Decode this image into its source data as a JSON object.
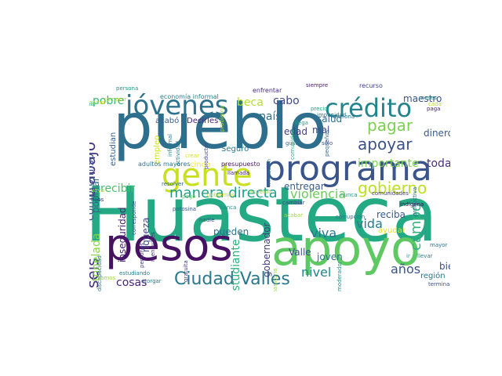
{
  "wordcloud": {
    "palette": [
      "#440154",
      "#3b528b",
      "#21918c",
      "#5ec962",
      "#fde725"
    ],
    "words": [
      {
        "text": "Huasteca",
        "c": "#23a983"
      },
      {
        "text": "pueblo",
        "c": "#2e6f8e"
      },
      {
        "text": "apoyo",
        "c": "#5ec962"
      },
      {
        "text": "pesos",
        "c": "#471164"
      },
      {
        "text": "programa",
        "c": "#3a548c"
      },
      {
        "text": "gente",
        "c": "#c8e020"
      },
      {
        "text": "jóvenes",
        "c": "#2c728e"
      },
      {
        "text": "crédito",
        "c": "#25838e"
      },
      {
        "text": "Ciudad Valles",
        "c": "#2a788e"
      },
      {
        "text": "gobierno",
        "c": "#bddf26"
      },
      {
        "text": "apoyar",
        "c": "#3b528b"
      },
      {
        "text": "pagar",
        "c": "#7ad151"
      },
      {
        "text": "bienestar",
        "c": "#3e4a89"
      },
      {
        "text": "trabajo",
        "c": "#443983"
      },
      {
        "text": "seis",
        "c": "#46337f"
      },
      {
        "text": "haciendo",
        "c": "#375a8c"
      },
      {
        "text": "manera directa",
        "c": "#1f9e89"
      },
      {
        "text": "violencia",
        "c": "#6ccd5a"
      },
      {
        "text": "vida",
        "c": "#287c8e"
      },
      {
        "text": "viva",
        "c": "#2a788e"
      },
      {
        "text": "campo",
        "c": "#2fb47c"
      },
      {
        "text": "nivel",
        "c": "#25848e"
      },
      {
        "text": "años",
        "c": "#3b528b"
      },
      {
        "text": "importante",
        "c": "#7ad151"
      },
      {
        "text": "toda",
        "c": "#472f7d"
      },
      {
        "text": "cabo",
        "c": "#3e4c8a"
      },
      {
        "text": "país",
        "c": "#2d718e"
      },
      {
        "text": "beca",
        "c": "#b5de2b"
      },
      {
        "text": "pobre",
        "c": "#38b977"
      },
      {
        "text": "compromiso",
        "c": "#3a548c"
      },
      {
        "text": "recibir",
        "c": "#46c06f"
      },
      {
        "text": "tonelada",
        "c": "#86d549"
      },
      {
        "text": "estudiante",
        "c": "#2db27d"
      },
      {
        "text": "cosas",
        "c": "#482576"
      },
      {
        "text": "popular",
        "c": "#31688e"
      },
      {
        "text": "estudian",
        "c": "#34608d"
      },
      {
        "text": "inseguridad",
        "c": "#482173"
      },
      {
        "text": "riqueza",
        "c": "#3e4989"
      },
      {
        "text": "pueden",
        "c": "#2c728e"
      },
      {
        "text": "entregar",
        "c": "#365c8d"
      },
      {
        "text": "gobernador",
        "c": "#433e85"
      },
      {
        "text": "joven",
        "c": "#2c728e"
      },
      {
        "text": "Valle",
        "c": "#3d4d8a"
      },
      {
        "text": "reciba",
        "c": "#375b8d"
      },
      {
        "text": "dinero",
        "c": "#38598c"
      },
      {
        "text": "maestro",
        "c": "#3b528b"
      },
      {
        "text": "salud",
        "c": "#2e6e8e"
      },
      {
        "text": "mal",
        "c": "#3f4889"
      },
      {
        "text": "edad",
        "c": "#433d84"
      },
      {
        "text": "región",
        "c": "#2a768e"
      },
      {
        "text": "bien",
        "c": "#3c4f8a"
      },
      {
        "text": "ayudar",
        "c": "#e5e419"
      },
      {
        "text": "Seguro",
        "c": "#287c8e"
      },
      {
        "text": "cinco",
        "c": "#fde725"
      },
      {
        "text": "empleo",
        "c": "#d2e21b"
      },
      {
        "text": "acabó",
        "c": "#355f8d"
      },
      {
        "text": "Decirles",
        "c": "#482878"
      },
      {
        "text": "adultos mayores",
        "c": "#2a788e"
      },
      {
        "text": "presupuesto",
        "c": "#481668"
      },
      {
        "text": "economía informal",
        "c": "#26818e"
      },
      {
        "text": "enfrentar",
        "c": "#472d7b"
      },
      {
        "text": "siempre",
        "c": "#481a6c"
      },
      {
        "text": "recurso",
        "c": "#404387"
      },
      {
        "text": "meses",
        "c": "#20938c"
      },
      {
        "text": "persona",
        "c": "#1f988b"
      },
      {
        "text": "comprar",
        "c": "#addc30"
      },
      {
        "text": "cumplir",
        "c": "#22a785"
      },
      {
        "text": "paga",
        "c": "#482475"
      },
      {
        "text": "cada",
        "c": "#b8de29"
      },
      {
        "text": "informal",
        "c": "#26828e"
      },
      {
        "text": "actividad",
        "c": "#287d8e"
      },
      {
        "text": "productor",
        "c": "#3f4788"
      },
      {
        "text": "problema",
        "c": "#a5db36"
      },
      {
        "text": "impunidad",
        "c": "#2b758e"
      },
      {
        "text": "llega",
        "c": "#22a884"
      },
      {
        "text": "funciona",
        "c": "#2c718e"
      },
      {
        "text": "pequeños",
        "c": "#306a8e"
      },
      {
        "text": "precio",
        "c": "#21a685"
      },
      {
        "text": "gusto",
        "c": "#2b748e"
      },
      {
        "text": "sólo",
        "c": "#3b528b"
      },
      {
        "text": "comunidad",
        "c": "#29af7f"
      },
      {
        "text": "migración",
        "c": "#2b758e"
      },
      {
        "text": "llamada",
        "c": "#482677"
      },
      {
        "text": "comunidades",
        "c": "#453781"
      },
      {
        "text": "nunca",
        "c": "#1f968b"
      },
      {
        "text": "indígena",
        "c": "#46085c"
      },
      {
        "text": "productiva",
        "c": "#2d708e"
      },
      {
        "text": "trabajadores",
        "c": "#31b57b"
      },
      {
        "text": "vaya",
        "c": "#b0dd2f"
      },
      {
        "text": "hijos",
        "c": "#46307e"
      },
      {
        "text": "resolver",
        "c": "#2f6c8e"
      },
      {
        "text": "corresponde",
        "c": "#414287"
      },
      {
        "text": "potosina",
        "c": "#38598c"
      },
      {
        "text": "banca",
        "c": "#20928c"
      },
      {
        "text": "cambiar",
        "c": "#414487"
      },
      {
        "text": "acabar",
        "c": "#a0da39"
      },
      {
        "text": "corrupción",
        "c": "#2b748e"
      },
      {
        "text": "mayor",
        "c": "#2a768e"
      },
      {
        "text": "nadie",
        "c": "#3d4e8a"
      },
      {
        "text": "entregando",
        "c": "#39568c"
      },
      {
        "text": "discapacidad",
        "c": "#2e6f8e"
      },
      {
        "text": "abandonado",
        "c": "#1fa088"
      },
      {
        "text": "mensuales",
        "c": "#46327e"
      },
      {
        "text": "personas",
        "c": "#424086"
      },
      {
        "text": "gratuita",
        "c": "#424186"
      },
      {
        "text": "estudiando",
        "c": "#287c8e"
      },
      {
        "text": "otorgar",
        "c": "#2a768e"
      },
      {
        "text": "preparatoria",
        "c": "#98d83e"
      },
      {
        "text": "moderador",
        "c": "#228d8d"
      },
      {
        "text": "ir",
        "c": "#1f9e89"
      },
      {
        "text": "llevar",
        "c": "#25858e"
      },
      {
        "text": "terminan",
        "c": "#3b528b"
      },
      {
        "text": "gobiernos",
        "c": "#c0df25"
      },
      {
        "text": "mismo",
        "c": "#dae319"
      },
      {
        "text": "vamos",
        "c": "#9bd93c"
      },
      {
        "text": "pago",
        "c": "#6ece58"
      },
      {
        "text": "crear",
        "c": "#d8e219"
      },
      {
        "text": "acuerdo",
        "c": "#95d840"
      }
    ]
  }
}
